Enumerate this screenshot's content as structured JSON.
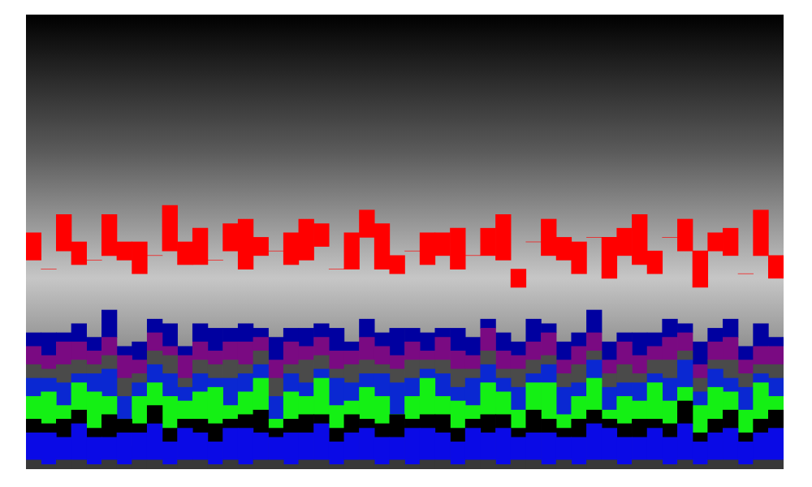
{
  "chart_data": {
    "type": "bar",
    "stacked": true,
    "tick_labels": false,
    "grid": false,
    "ylim": [
      0,
      100
    ],
    "categories": [
      null,
      null,
      null,
      null,
      null,
      null,
      null,
      null,
      null,
      null,
      null,
      null,
      null,
      null,
      null,
      null,
      null,
      null,
      null,
      null,
      null,
      null,
      null,
      null,
      null,
      null,
      null,
      null,
      null,
      null,
      null,
      null,
      null,
      null,
      null,
      null,
      null,
      null,
      null,
      null,
      null,
      null,
      null,
      null,
      null,
      null,
      null,
      null,
      null,
      null
    ],
    "series": [
      {
        "color": "#383838",
        "values": [
          2,
          1,
          2,
          2,
          1,
          2,
          1,
          2,
          2,
          1,
          2,
          2,
          1,
          2,
          1,
          2,
          2,
          1,
          2,
          2,
          1,
          2,
          2,
          1,
          2,
          1,
          2,
          2,
          1,
          2,
          2,
          1,
          2,
          2,
          1,
          2,
          1,
          2,
          2,
          1,
          2,
          2,
          1,
          2,
          1,
          2,
          2,
          1,
          2,
          2
        ]
      },
      {
        "color": "#0a0ae6",
        "values": [
          6,
          7,
          5,
          8,
          6,
          5,
          7,
          6,
          8,
          5,
          7,
          6,
          5,
          7,
          8,
          6,
          5,
          7,
          6,
          8,
          5,
          6,
          7,
          6,
          5,
          8,
          7,
          6,
          5,
          7,
          6,
          8,
          5,
          6,
          7,
          5,
          6,
          8,
          7,
          6,
          5,
          7,
          6,
          8,
          5,
          6,
          7,
          5,
          6,
          7
        ]
      },
      {
        "color": "#000000",
        "values": [
          3,
          2,
          4,
          3,
          2,
          5,
          3,
          2,
          4,
          3,
          2,
          3,
          4,
          2,
          3,
          5,
          2,
          3,
          4,
          2,
          3,
          4,
          2,
          3,
          5,
          2,
          3,
          4,
          3,
          2,
          4,
          3,
          2,
          5,
          3,
          2,
          4,
          3,
          2,
          3,
          4,
          2,
          3,
          5,
          2,
          3,
          4,
          2,
          3,
          4
        ]
      },
      {
        "color": "#14f014",
        "values": [
          5,
          7,
          3,
          6,
          8,
          4,
          0,
          6,
          5,
          7,
          4,
          6,
          8,
          3,
          5,
          7,
          2,
          6,
          4,
          8,
          5,
          3,
          7,
          6,
          0,
          5,
          8,
          4,
          6,
          3,
          7,
          5,
          4,
          6,
          8,
          3,
          5,
          7,
          2,
          6,
          4,
          8,
          5,
          3,
          6,
          7,
          4,
          5,
          8,
          3
        ]
      },
      {
        "color": "#0a28d2",
        "values": [
          4,
          3,
          5,
          2,
          4,
          6,
          5,
          3,
          4,
          5,
          3,
          4,
          2,
          6,
          4,
          3,
          5,
          4,
          3,
          2,
          6,
          4,
          3,
          5,
          7,
          4,
          2,
          5,
          3,
          6,
          4,
          3,
          5,
          2,
          4,
          6,
          3,
          4,
          5,
          3,
          4,
          2,
          5,
          6,
          3,
          4,
          3,
          5,
          2,
          4
        ]
      },
      {
        "color": "#4a4a4a",
        "values": [
          3,
          2,
          4,
          3,
          2,
          3,
          4,
          2,
          3,
          4,
          2,
          3,
          3,
          4,
          2,
          3,
          4,
          2,
          5,
          3,
          2,
          4,
          3,
          2,
          3,
          4,
          2,
          3,
          4,
          2,
          3,
          2,
          4,
          3,
          2,
          3,
          4,
          2,
          3,
          4,
          2,
          3,
          4,
          2,
          3,
          2,
          4,
          3,
          2,
          3
        ]
      },
      {
        "color": "#7a0a82",
        "values": [
          4,
          3,
          5,
          4,
          3,
          4,
          5,
          3,
          4,
          2,
          5,
          4,
          3,
          4,
          5,
          3,
          4,
          5,
          3,
          4,
          4,
          3,
          5,
          4,
          3,
          4,
          2,
          5,
          4,
          3,
          5,
          4,
          3,
          4,
          5,
          3,
          4,
          4,
          3,
          5,
          4,
          3,
          5,
          4,
          3,
          4,
          5,
          3,
          4,
          4
        ]
      },
      {
        "color": "#0000a0",
        "values": [
          3,
          5,
          2,
          4,
          3,
          6,
          2,
          4,
          3,
          5,
          2,
          4,
          5,
          3,
          4,
          2,
          5,
          3,
          4,
          3,
          5,
          2,
          4,
          3,
          6,
          3,
          4,
          2,
          5,
          4,
          2,
          4,
          3,
          5,
          2,
          4,
          3,
          5,
          4,
          2,
          5,
          3,
          4,
          2,
          5,
          3,
          4,
          3,
          5,
          2
        ]
      },
      {
        "values": [
          16,
          14,
          18,
          13,
          17,
          12,
          19,
          15,
          14,
          16,
          18,
          13,
          15,
          17,
          12,
          16,
          19,
          14,
          15,
          17,
          13,
          16,
          18,
          14,
          12,
          17,
          15,
          16,
          13,
          18,
          14,
          16,
          12,
          17,
          15,
          18,
          13,
          16,
          14,
          17,
          15,
          13,
          18,
          16,
          12,
          17,
          14,
          16,
          15,
          13
        ]
      },
      {
        "color": "#ff0000",
        "values": [
          6,
          0,
          8,
          5,
          0,
          9,
          4,
          7,
          0,
          10,
          5,
          8,
          0,
          6,
          11,
          4,
          0,
          7,
          9,
          5,
          0,
          8,
          6,
          10,
          4,
          0,
          7,
          5,
          9,
          0,
          6,
          10,
          4,
          0,
          8,
          5,
          7,
          0,
          9,
          6,
          11,
          5,
          0,
          7,
          8,
          4,
          6,
          0,
          10,
          5
        ]
      }
    ]
  }
}
